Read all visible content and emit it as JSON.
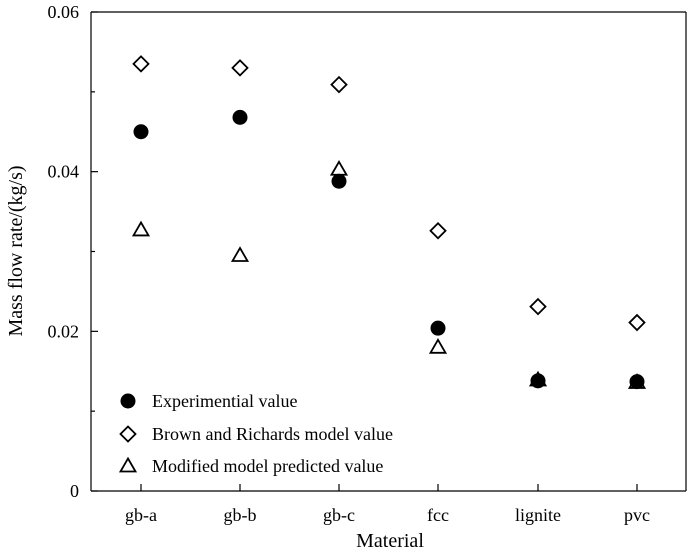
{
  "chart_data": {
    "type": "scatter",
    "title": "",
    "xlabel": "Material",
    "ylabel": "Mass flow rate/(kg/s)",
    "categories": [
      "gb-a",
      "gb-b",
      "gb-c",
      "fcc",
      "lignite",
      "pvc"
    ],
    "ylim": [
      0,
      0.06
    ],
    "yticks": [
      0,
      0.02,
      0.04,
      0.06
    ],
    "ytick_labels": [
      "0",
      "0.02",
      "0.04",
      "0.06"
    ],
    "grid": false,
    "legend_position": "bottom-left",
    "series": [
      {
        "name": "Experimential value",
        "marker": "filled-circle",
        "values": [
          0.045,
          0.0468,
          0.0388,
          0.0204,
          0.0138,
          0.0137
        ]
      },
      {
        "name": "Brown and Richards model value",
        "marker": "open-diamond",
        "values": [
          0.0535,
          0.053,
          0.0509,
          0.0326,
          0.0231,
          0.0211
        ]
      },
      {
        "name": "Modified model predicted value",
        "marker": "open-triangle",
        "values": [
          0.0327,
          0.0295,
          0.0403,
          0.018,
          0.0139,
          0.0136
        ]
      }
    ]
  }
}
